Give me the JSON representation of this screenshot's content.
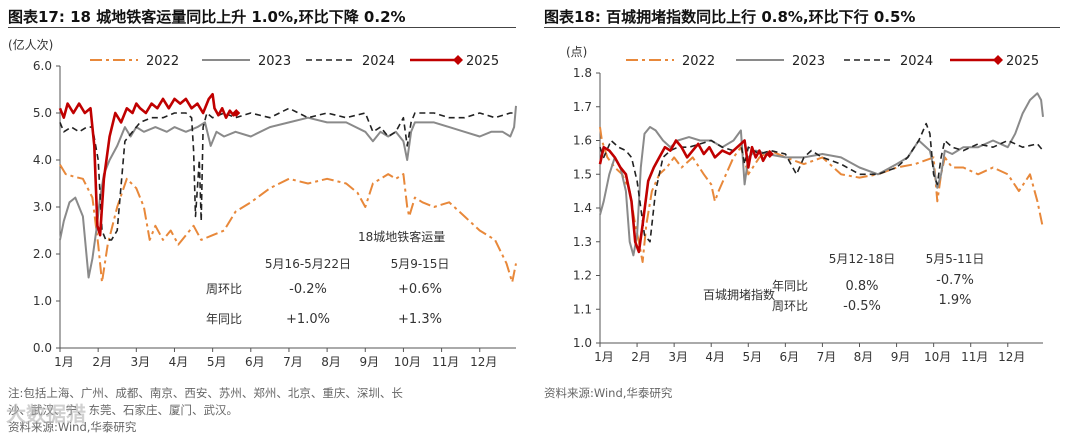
{
  "left": {
    "title": "图表17:  18 城地铁客运量同比上升 1.0%,环比下降 0.2%",
    "note_line1": "注:包括上海、广州、成都、南京、西安、苏州、郑州、北京、重庆、深圳、长",
    "note_line2": "沙、武汉、宁、东莞、石家庄、厦门、武汉。",
    "note_line3": "资料来源:Wind,华泰研究"
  },
  "right": {
    "title": "图表18:  百城拥堵指数同比上行 0.8%,环比下行 0.5%",
    "source": "资料来源:Wind,华泰研究"
  },
  "watermark": "大数据猎",
  "chart_data": [
    {
      "type": "line",
      "title": "18城地铁客运量",
      "ylabel": "(亿人次)",
      "ylim": [
        0.0,
        6.0
      ],
      "yticks": [
        "0.0",
        "1.0",
        "2.0",
        "3.0",
        "4.0",
        "5.0",
        "6.0"
      ],
      "xticks": [
        "1月",
        "2月",
        "3月",
        "4月",
        "5月",
        "6月",
        "7月",
        "8月",
        "9月",
        "10月",
        "11月",
        "12月"
      ],
      "xlim": [
        1,
        12.95
      ],
      "series": [
        {
          "name": "2022",
          "color": "#E8883A",
          "dash": "12,4,3,4",
          "width": 2,
          "x": [
            1,
            1.15,
            1.35,
            1.6,
            1.85,
            2.0,
            2.1,
            2.25,
            2.5,
            2.75,
            3.0,
            3.2,
            3.35,
            3.5,
            3.7,
            3.9,
            4.1,
            4.3,
            4.5,
            4.7,
            5.0,
            5.3,
            5.6,
            6.0,
            6.5,
            7.0,
            7.5,
            8.0,
            8.5,
            8.8,
            9.0,
            9.2,
            9.4,
            9.6,
            9.8,
            10.0,
            10.1,
            10.15,
            10.3,
            10.5,
            10.8,
            11.2,
            11.6,
            12.0,
            12.4,
            12.7,
            12.85,
            12.95
          ],
          "y": [
            3.9,
            3.7,
            3.65,
            3.6,
            3.2,
            2.2,
            1.4,
            2.2,
            3.0,
            3.6,
            3.4,
            3.0,
            2.3,
            2.6,
            2.3,
            2.5,
            2.2,
            2.4,
            2.6,
            2.3,
            2.4,
            2.5,
            2.9,
            3.1,
            3.4,
            3.6,
            3.5,
            3.6,
            3.5,
            3.3,
            3.0,
            3.5,
            3.6,
            3.7,
            3.6,
            3.7,
            3.0,
            2.8,
            3.2,
            3.1,
            3.0,
            3.1,
            2.8,
            2.5,
            2.3,
            1.8,
            1.4,
            1.8
          ]
        },
        {
          "name": "2023",
          "color": "#8A8A8A",
          "dash": "",
          "width": 2,
          "x": [
            1,
            1.1,
            1.25,
            1.4,
            1.6,
            1.75,
            1.85,
            1.95,
            2.05,
            2.15,
            2.3,
            2.5,
            2.7,
            2.85,
            3.0,
            3.2,
            3.5,
            3.8,
            4.0,
            4.3,
            4.6,
            4.8,
            4.95,
            5.1,
            5.3,
            5.6,
            6.0,
            6.5,
            7.0,
            7.5,
            8.0,
            8.5,
            9.0,
            9.2,
            9.4,
            9.6,
            9.8,
            10.0,
            10.1,
            10.2,
            10.3,
            10.5,
            10.8,
            11.2,
            11.6,
            12.0,
            12.3,
            12.6,
            12.8,
            12.9,
            12.95
          ],
          "y": [
            2.3,
            2.7,
            3.1,
            3.2,
            2.8,
            1.5,
            1.9,
            2.5,
            3.2,
            3.7,
            4.0,
            4.3,
            4.7,
            4.5,
            4.7,
            4.6,
            4.7,
            4.6,
            4.7,
            4.6,
            4.7,
            4.8,
            4.3,
            4.6,
            4.5,
            4.6,
            4.5,
            4.7,
            4.8,
            4.9,
            4.8,
            4.8,
            4.6,
            4.4,
            4.6,
            4.5,
            4.6,
            4.4,
            4.0,
            4.6,
            4.8,
            4.8,
            4.8,
            4.7,
            4.6,
            4.5,
            4.6,
            4.6,
            4.5,
            4.7,
            5.15
          ]
        },
        {
          "name": "2024",
          "color": "#222222",
          "dash": "6,4",
          "width": 1.6,
          "x": [
            1,
            1.1,
            1.3,
            1.5,
            1.7,
            1.85,
            2.0,
            2.1,
            2.2,
            2.35,
            2.5,
            2.7,
            2.9,
            3.1,
            3.4,
            3.7,
            4.0,
            4.3,
            4.45,
            4.5,
            4.55,
            4.65,
            4.7,
            4.75,
            4.85,
            5.0,
            5.3,
            5.6,
            6.0,
            6.5,
            7.0,
            7.5,
            8.0,
            8.5,
            9.0,
            9.2,
            9.4,
            9.6,
            9.8,
            10.0,
            10.1,
            10.2,
            10.3,
            10.5,
            10.8,
            11.2,
            11.6,
            12.0,
            12.4,
            12.8,
            12.95
          ],
          "y": [
            4.8,
            4.6,
            4.7,
            4.6,
            4.7,
            4.7,
            4.0,
            2.5,
            2.3,
            2.3,
            2.5,
            4.4,
            4.6,
            4.8,
            4.9,
            4.9,
            5.0,
            5.0,
            4.9,
            4.2,
            2.8,
            4.0,
            2.7,
            4.7,
            5.0,
            4.9,
            5.0,
            4.9,
            5.0,
            4.9,
            5.1,
            4.9,
            5.0,
            4.9,
            5.0,
            4.6,
            4.7,
            4.5,
            4.6,
            4.9,
            4.3,
            4.8,
            5.0,
            5.0,
            5.0,
            4.9,
            4.9,
            5.0,
            4.9,
            5.0,
            5.0
          ]
        },
        {
          "name": "2025",
          "color": "#C00000",
          "dash": "",
          "width": 2.6,
          "marker": "diamond",
          "x": [
            1,
            1.1,
            1.2,
            1.35,
            1.5,
            1.65,
            1.8,
            1.9,
            1.98,
            2.05,
            2.15,
            2.3,
            2.45,
            2.6,
            2.75,
            2.9,
            3.0,
            3.1,
            3.25,
            3.4,
            3.55,
            3.7,
            3.85,
            4.0,
            4.15,
            4.3,
            4.45,
            4.6,
            4.75,
            4.9,
            5.0,
            5.05,
            5.15,
            5.25,
            5.35,
            5.45,
            5.55,
            5.62
          ],
          "y": [
            5.1,
            4.9,
            5.2,
            5.0,
            5.2,
            5.0,
            5.1,
            4.3,
            2.6,
            2.4,
            3.6,
            4.5,
            5.0,
            4.8,
            5.1,
            5.0,
            5.2,
            5.1,
            5.0,
            5.2,
            5.1,
            5.3,
            5.1,
            5.3,
            5.2,
            5.3,
            5.1,
            5.2,
            5.0,
            5.3,
            5.4,
            5.1,
            4.95,
            5.1,
            4.9,
            5.05,
            4.95,
            5.0
          ],
          "last_marker": [
            5.62,
            5.0
          ]
        }
      ],
      "table": {
        "header_title": "18城地铁客运量",
        "col1": "5月16-5月22日",
        "col2": "5月9-15日",
        "rows": [
          {
            "label": "周环比",
            "v1": "-0.2%",
            "v2": "+0.6%"
          },
          {
            "label": "年同比",
            "v1": "+1.0%",
            "v2": "+1.3%"
          }
        ]
      }
    },
    {
      "type": "line",
      "title": "百城拥堵指数",
      "ylabel": "(点)",
      "ylim": [
        1.0,
        1.8
      ],
      "yticks": [
        "1.0",
        "1.1",
        "1.2",
        "1.3",
        "1.4",
        "1.5",
        "1.6",
        "1.7",
        "1.8"
      ],
      "xticks": [
        "1月",
        "2月",
        "3月",
        "4月",
        "5月",
        "6月",
        "7月",
        "8月",
        "9月",
        "10月",
        "11月",
        "12月"
      ],
      "xlim": [
        1,
        12.95
      ],
      "series": [
        {
          "name": "2022",
          "color": "#E8883A",
          "dash": "12,4,3,4",
          "width": 2,
          "x": [
            1,
            1.05,
            1.2,
            1.4,
            1.6,
            1.8,
            1.95,
            2.05,
            2.15,
            2.25,
            2.4,
            2.6,
            2.8,
            3.0,
            3.2,
            3.5,
            3.8,
            4.0,
            4.1,
            4.2,
            4.4,
            4.6,
            4.8,
            5.0,
            5.3,
            5.6,
            6.0,
            6.5,
            7.0,
            7.5,
            8.0,
            8.5,
            9.0,
            9.5,
            10.0,
            10.1,
            10.2,
            10.3,
            10.5,
            10.8,
            11.2,
            11.6,
            12.0,
            12.3,
            12.6,
            12.8,
            12.95
          ],
          "y": [
            1.64,
            1.6,
            1.55,
            1.52,
            1.5,
            1.45,
            1.35,
            1.3,
            1.24,
            1.35,
            1.45,
            1.5,
            1.52,
            1.55,
            1.52,
            1.55,
            1.5,
            1.47,
            1.42,
            1.45,
            1.5,
            1.55,
            1.58,
            1.5,
            1.55,
            1.57,
            1.55,
            1.53,
            1.55,
            1.5,
            1.49,
            1.5,
            1.52,
            1.53,
            1.55,
            1.42,
            1.5,
            1.55,
            1.52,
            1.52,
            1.5,
            1.52,
            1.5,
            1.45,
            1.5,
            1.42,
            1.34
          ]
        },
        {
          "name": "2023",
          "color": "#8A8A8A",
          "dash": "",
          "width": 2,
          "x": [
            1,
            1.1,
            1.25,
            1.4,
            1.55,
            1.7,
            1.8,
            1.9,
            2.0,
            2.1,
            2.2,
            2.35,
            2.5,
            2.7,
            2.9,
            3.1,
            3.4,
            3.7,
            4.0,
            4.3,
            4.6,
            4.8,
            4.9,
            5.0,
            5.2,
            5.5,
            6.0,
            6.5,
            7.0,
            7.5,
            8.0,
            8.5,
            9.0,
            9.3,
            9.6,
            9.9,
            10.0,
            10.1,
            10.2,
            10.3,
            10.5,
            10.8,
            11.2,
            11.6,
            12.0,
            12.2,
            12.4,
            12.6,
            12.8,
            12.9,
            12.95
          ],
          "y": [
            1.38,
            1.42,
            1.5,
            1.55,
            1.52,
            1.45,
            1.3,
            1.26,
            1.32,
            1.52,
            1.62,
            1.64,
            1.63,
            1.6,
            1.58,
            1.6,
            1.61,
            1.6,
            1.6,
            1.58,
            1.6,
            1.63,
            1.47,
            1.55,
            1.57,
            1.56,
            1.55,
            1.55,
            1.56,
            1.55,
            1.52,
            1.5,
            1.53,
            1.55,
            1.6,
            1.57,
            1.52,
            1.46,
            1.5,
            1.57,
            1.56,
            1.58,
            1.58,
            1.6,
            1.58,
            1.62,
            1.68,
            1.72,
            1.74,
            1.72,
            1.67
          ]
        },
        {
          "name": "2024",
          "color": "#222222",
          "dash": "6,4",
          "width": 1.6,
          "x": [
            1,
            1.1,
            1.3,
            1.5,
            1.7,
            1.85,
            2.0,
            2.1,
            2.2,
            2.35,
            2.5,
            2.7,
            2.9,
            3.1,
            3.4,
            3.7,
            4.0,
            4.3,
            4.6,
            4.8,
            4.9,
            5.0,
            5.3,
            5.6,
            6.0,
            6.3,
            6.5,
            6.7,
            7.0,
            7.5,
            8.0,
            8.5,
            9.0,
            9.3,
            9.6,
            9.8,
            9.9,
            10.0,
            10.1,
            10.2,
            10.3,
            10.5,
            10.8,
            11.2,
            11.6,
            12.0,
            12.4,
            12.8,
            12.95
          ],
          "y": [
            1.58,
            1.55,
            1.6,
            1.58,
            1.57,
            1.55,
            1.48,
            1.4,
            1.32,
            1.3,
            1.45,
            1.55,
            1.57,
            1.58,
            1.58,
            1.59,
            1.6,
            1.58,
            1.57,
            1.59,
            1.53,
            1.58,
            1.56,
            1.57,
            1.56,
            1.5,
            1.55,
            1.57,
            1.55,
            1.53,
            1.5,
            1.5,
            1.52,
            1.55,
            1.6,
            1.65,
            1.62,
            1.5,
            1.47,
            1.55,
            1.6,
            1.58,
            1.57,
            1.59,
            1.58,
            1.6,
            1.58,
            1.59,
            1.57
          ]
        },
        {
          "name": "2025",
          "color": "#C00000",
          "dash": "",
          "width": 2.6,
          "marker": "diamond",
          "x": [
            1,
            1.1,
            1.25,
            1.4,
            1.55,
            1.7,
            1.85,
            1.95,
            2.05,
            2.15,
            2.3,
            2.45,
            2.6,
            2.75,
            2.9,
            3.05,
            3.2,
            3.35,
            3.5,
            3.65,
            3.8,
            3.95,
            4.1,
            4.3,
            4.5,
            4.7,
            4.9,
            5.0,
            5.1,
            5.2,
            5.3,
            5.4,
            5.5,
            5.58
          ],
          "y": [
            1.53,
            1.58,
            1.57,
            1.55,
            1.52,
            1.5,
            1.42,
            1.3,
            1.27,
            1.35,
            1.48,
            1.52,
            1.55,
            1.58,
            1.57,
            1.6,
            1.58,
            1.55,
            1.57,
            1.59,
            1.56,
            1.58,
            1.55,
            1.57,
            1.56,
            1.58,
            1.6,
            1.52,
            1.58,
            1.55,
            1.57,
            1.54,
            1.56,
            1.56
          ],
          "last_marker": [
            5.58,
            1.56
          ]
        }
      ],
      "table": {
        "header_title": "百城拥堵指数",
        "col1": "5月12-18日",
        "col2": "5月5-11日",
        "rows": [
          {
            "label": "年同比",
            "v1": "0.8%",
            "v2": "-0.7%"
          },
          {
            "label": "周环比",
            "v1": "-0.5%",
            "v2": "1.9%"
          }
        ]
      }
    }
  ]
}
